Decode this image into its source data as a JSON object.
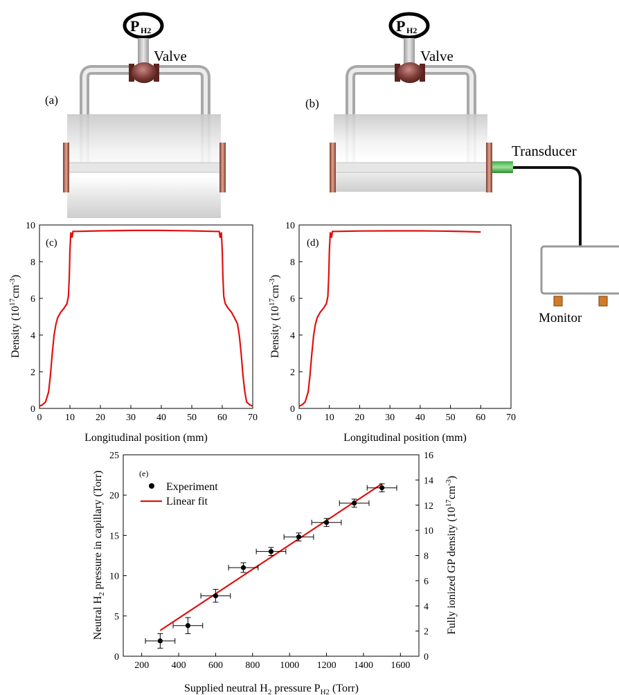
{
  "colors": {
    "fit_line": "#e01010",
    "axis": "#000000",
    "points": "#000000"
  },
  "setup": {
    "gauge_label_main": "P",
    "gauge_label_sub": "H2",
    "valve_label": "Valve",
    "panel_a_label": "(a)",
    "panel_b_label": "(b)",
    "transducer_label": "Transducer",
    "monitor_label": "Monitor"
  },
  "chart_data": [
    {
      "type": "line",
      "panel_label": "(c)",
      "xlabel": "Longitudinal position (mm)",
      "ylabel_main": "Density (10",
      "ylabel_exp1": "17",
      "ylabel_mid": "cm",
      "ylabel_exp2": "-3",
      "ylabel_end": ")",
      "xlim": [
        0,
        70
      ],
      "ylim": [
        0,
        10
      ],
      "xticks": [
        0,
        10,
        20,
        30,
        40,
        50,
        60,
        70
      ],
      "yticks": [
        0,
        2,
        4,
        6,
        8,
        10
      ],
      "series": [
        {
          "x": [
            0,
            1,
            2,
            3,
            3.6,
            4.2,
            4.8,
            5.4,
            6,
            7,
            8,
            9,
            9.5,
            9.8,
            10,
            10.3,
            10.7,
            11,
            12,
            20,
            30,
            40,
            50,
            58,
            59,
            59.3,
            59.7,
            60,
            60.2,
            60.5,
            61,
            62,
            63,
            64,
            65,
            65.6,
            66.2,
            66.8,
            67.4,
            68,
            69,
            70
          ],
          "y": [
            0.12,
            0.2,
            0.35,
            0.9,
            1.8,
            3.0,
            4.0,
            4.6,
            4.95,
            5.25,
            5.45,
            5.7,
            6.1,
            7.2,
            8.6,
            9.6,
            9.3,
            9.65,
            9.65,
            9.68,
            9.7,
            9.7,
            9.68,
            9.65,
            9.65,
            9.3,
            9.6,
            8.6,
            7.2,
            6.1,
            5.7,
            5.45,
            5.25,
            4.95,
            4.6,
            4.0,
            3.0,
            1.8,
            0.9,
            0.35,
            0.2,
            0.12
          ]
        }
      ]
    },
    {
      "type": "line",
      "panel_label": "(d)",
      "xlabel": "Longitudinal position (mm)",
      "ylabel_main": "Density (10",
      "ylabel_exp1": "17",
      "ylabel_mid": "cm",
      "ylabel_exp2": "-3",
      "ylabel_end": ")",
      "xlim": [
        0,
        70
      ],
      "ylim": [
        0,
        10
      ],
      "xticks": [
        0,
        10,
        20,
        30,
        40,
        50,
        60,
        70
      ],
      "yticks": [
        0,
        2,
        4,
        6,
        8,
        10
      ],
      "series": [
        {
          "x": [
            0,
            1,
            2,
            3,
            3.6,
            4.2,
            4.8,
            5.4,
            6,
            7,
            8,
            9,
            9.5,
            9.8,
            10,
            10.3,
            10.7,
            11,
            12,
            20,
            30,
            40,
            50,
            55,
            60
          ],
          "y": [
            0.12,
            0.2,
            0.35,
            0.9,
            1.8,
            3.0,
            4.0,
            4.6,
            4.95,
            5.25,
            5.45,
            5.7,
            6.1,
            7.2,
            8.6,
            9.6,
            9.3,
            9.65,
            9.65,
            9.67,
            9.68,
            9.68,
            9.66,
            9.64,
            9.62
          ]
        }
      ]
    },
    {
      "type": "scatter",
      "panel_label": "(e)",
      "xlabel_main": "Supplied neutral H",
      "xlabel_sub": "2",
      "xlabel_mid": " pressure P",
      "xlabel_sub2": "H2",
      "xlabel_end": " (Torr)",
      "ylabel_main": "Neutral H",
      "ylabel_sub": "2",
      "ylabel_end": " pressure in capillary (Torr)",
      "y2label_main": "Fully ionized GP density (10",
      "y2label_exp1": "17",
      "y2label_mid": "cm",
      "y2label_exp2": "-3",
      "y2label_end": ")",
      "xlim": [
        100,
        1700
      ],
      "ylim": [
        0,
        25
      ],
      "y2lim": [
        0,
        16
      ],
      "xticks": [
        200,
        400,
        600,
        800,
        1000,
        1200,
        1400,
        1600
      ],
      "yticks": [
        0,
        5,
        10,
        15,
        20,
        25
      ],
      "y2ticks": [
        0,
        2,
        4,
        6,
        8,
        10,
        12,
        14,
        16
      ],
      "legend": {
        "placement": "top-left",
        "entries": [
          "Experiment",
          "Linear fit"
        ]
      },
      "series": [
        {
          "name": "Experiment",
          "x": [
            300,
            450,
            600,
            750,
            900,
            1050,
            1200,
            1350,
            1500
          ],
          "y": [
            1.9,
            3.8,
            7.5,
            11.0,
            13.0,
            14.8,
            16.6,
            19.0,
            20.9
          ],
          "xerr": [
            80,
            80,
            80,
            80,
            80,
            80,
            80,
            80,
            80
          ],
          "yerr": [
            0.9,
            1.0,
            0.8,
            0.6,
            0.5,
            0.5,
            0.5,
            0.5,
            0.5
          ]
        },
        {
          "name": "Linear fit",
          "x": [
            300,
            1500
          ],
          "y": [
            3.2,
            21.4
          ]
        }
      ]
    }
  ]
}
